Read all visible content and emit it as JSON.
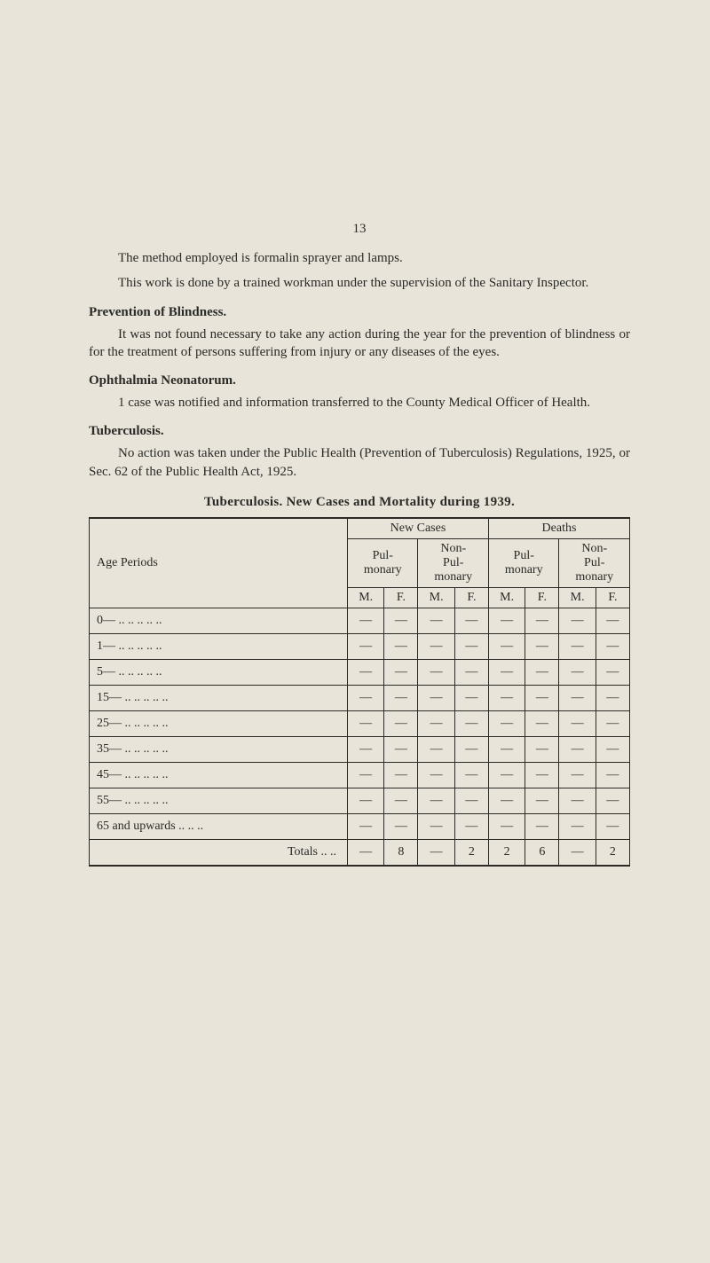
{
  "page_number": "13",
  "paragraphs": {
    "p1": "The method employed is formalin sprayer and lamps.",
    "p2": "This work is done by a trained workman under the supervision of the Sanitary Inspector.",
    "prevention_h": "Prevention of Blindness.",
    "prevention_p": "It was not found necessary to take any action during the year for the prevention of blindness or for the treatment of persons suffering from injury or any diseases of the eyes.",
    "oph_h": "Ophthalmia Neonatorum.",
    "oph_p": "1 case was notified and information transferred to the County Medical Officer of Health.",
    "tub_h": "Tuberculosis.",
    "tub_p": "No action was taken under the Public Health (Prevention of Tuberculosis) Regulations, 1925, or Sec. 62 of the Public Health Act, 1925."
  },
  "table": {
    "title": "Tuberculosis.  New Cases and Mortality during 1939.",
    "head": {
      "age": "Age Periods",
      "new_cases": "New Cases",
      "deaths": "Deaths",
      "pul": "Pul-\nmonary",
      "nonpul": "Non-\nPul-\nmonary",
      "m": "M.",
      "f": "F."
    },
    "age_rows": [
      "0— ..    ..    ..    ..    ..",
      "1— ..    ..    ..    ..    ..",
      "5— ..    ..    ..    ..    ..",
      "15— ..   ..    ..    ..    ..",
      "25— ..   ..    ..    ..    ..",
      "35— ..   ..    ..    ..    ..",
      "45— ..   ..    ..    ..    ..",
      "55— ..   ..    ..    ..    ..",
      "65 and upwards   ..    ..    .."
    ],
    "totals_label": "Totals    ..    ..",
    "totals": [
      "—",
      "8",
      "—",
      "2",
      "2",
      "6",
      "—",
      "2"
    ],
    "dash": "—"
  },
  "colors": {
    "bg": "#e8e4da",
    "text": "#2a2a26"
  }
}
